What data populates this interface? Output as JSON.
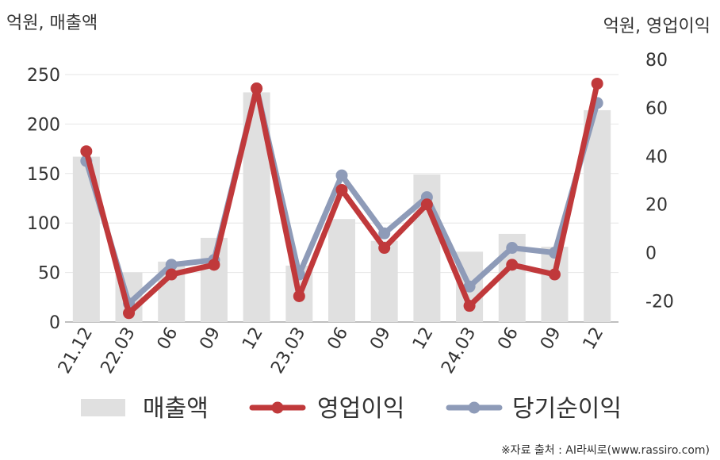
{
  "chart_data": {
    "type": "bar+line",
    "left_axis_unit": "억원, 매출액",
    "right_axis_unit": "억원, 영업이익",
    "categories": [
      "21.12",
      "22.03",
      "06",
      "09",
      "12",
      "23.03",
      "06",
      "09",
      "12",
      "24.03",
      "06",
      "09",
      "12"
    ],
    "left_axis": {
      "ylim": [
        0,
        250
      ],
      "ticks": [
        0,
        50,
        100,
        150,
        200,
        250
      ]
    },
    "right_axis": {
      "ylim": [
        -30,
        80
      ],
      "ticks": [
        -20,
        0,
        20,
        40,
        60,
        80
      ]
    },
    "series": [
      {
        "name": "매출액",
        "type": "bar",
        "axis": "left",
        "color": "#e0e0e0",
        "values": [
          167,
          50,
          61,
          85,
          232,
          57,
          104,
          82,
          149,
          71,
          89,
          76,
          214
        ]
      },
      {
        "name": "영업이익",
        "type": "line",
        "axis": "right",
        "color": "#c0393b",
        "values": [
          42,
          -25,
          -9,
          -5,
          68,
          -18,
          26,
          2,
          20,
          -22,
          -5,
          -9,
          70
        ]
      },
      {
        "name": "당기순이익",
        "type": "line",
        "axis": "right",
        "color": "#8e9bb8",
        "values": [
          38,
          -21,
          -5,
          -3,
          68,
          -9,
          32,
          8,
          23,
          -14,
          2,
          0,
          62
        ]
      }
    ],
    "grid": true,
    "legend_position": "bottom"
  },
  "source_text": "※자료 출처 : AI라씨로(www.rassiro.com)"
}
